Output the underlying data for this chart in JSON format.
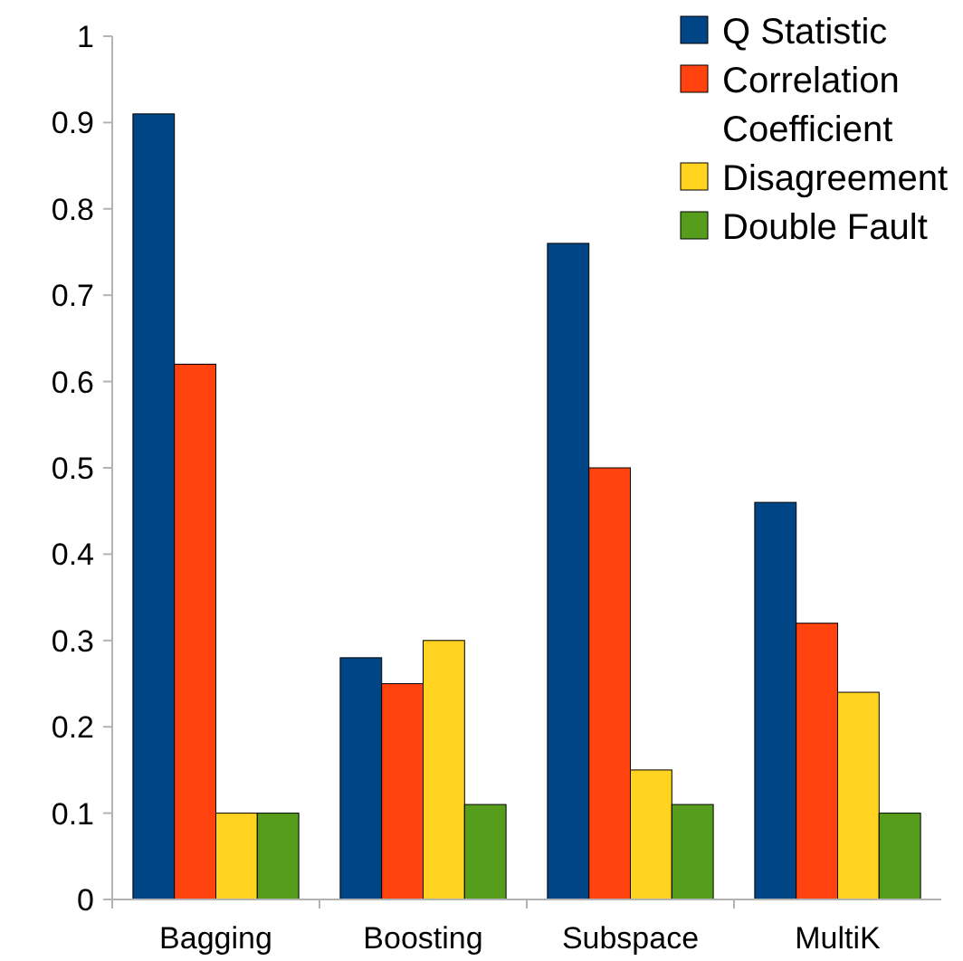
{
  "chart_data": {
    "type": "bar",
    "categories": [
      "Bagging",
      "Boosting",
      "Subspace",
      "MultiK"
    ],
    "series": [
      {
        "name": "Q Statistic",
        "color": "#004586",
        "values": [
          0.91,
          0.28,
          0.76,
          0.46
        ]
      },
      {
        "name": "Correlation Coefficient",
        "color": "#ff420e",
        "values": [
          0.62,
          0.25,
          0.5,
          0.32
        ]
      },
      {
        "name": "Disagreement",
        "color": "#ffd320",
        "values": [
          0.1,
          0.3,
          0.15,
          0.24
        ]
      },
      {
        "name": "Double Fault",
        "color": "#579d1c",
        "values": [
          0.1,
          0.11,
          0.11,
          0.1
        ]
      }
    ],
    "ylim": [
      0,
      1
    ],
    "yticks": [
      0,
      0.1,
      0.2,
      0.3,
      0.4,
      0.5,
      0.6,
      0.7,
      0.8,
      0.9,
      1
    ],
    "grid": false,
    "legend": "top right"
  }
}
